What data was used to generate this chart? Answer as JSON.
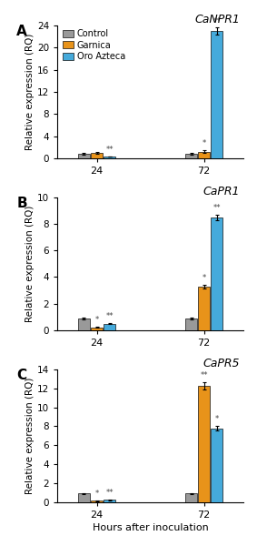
{
  "panels": [
    {
      "label": "A",
      "title": "CaNPR1",
      "ylim": [
        0,
        24
      ],
      "yticks": [
        0,
        4,
        8,
        12,
        16,
        20,
        24
      ],
      "bar_values": [
        [
          0.8,
          0.9,
          0.3
        ],
        [
          0.8,
          1.2,
          23.0
        ]
      ],
      "bar_errors": [
        [
          0.1,
          0.15,
          0.05
        ],
        [
          0.1,
          0.2,
          0.6
        ]
      ],
      "significance": [
        [
          null,
          null,
          "**"
        ],
        [
          null,
          "*",
          "**"
        ]
      ]
    },
    {
      "label": "B",
      "title": "CaPR1",
      "ylim": [
        0,
        10
      ],
      "yticks": [
        0,
        2,
        4,
        6,
        8,
        10
      ],
      "bar_values": [
        [
          0.9,
          0.2,
          0.5
        ],
        [
          0.9,
          3.3,
          8.5
        ]
      ],
      "bar_errors": [
        [
          0.08,
          0.04,
          0.06
        ],
        [
          0.08,
          0.15,
          0.2
        ]
      ],
      "significance": [
        [
          null,
          "*",
          "**"
        ],
        [
          null,
          "*",
          "**"
        ]
      ]
    },
    {
      "label": "C",
      "title": "CaPR5",
      "ylim": [
        0,
        14
      ],
      "yticks": [
        0,
        2,
        4,
        6,
        8,
        10,
        12,
        14
      ],
      "bar_values": [
        [
          0.9,
          0.15,
          0.25
        ],
        [
          0.9,
          12.3,
          7.8
        ]
      ],
      "bar_errors": [
        [
          0.08,
          0.03,
          0.04
        ],
        [
          0.08,
          0.4,
          0.25
        ]
      ],
      "significance": [
        [
          null,
          "*",
          "**"
        ],
        [
          null,
          "**",
          "*"
        ]
      ]
    }
  ],
  "colors": [
    "#999999",
    "#E8931A",
    "#45AADB"
  ],
  "legend_labels": [
    "Control",
    "Garnica",
    "Oro Azteca"
  ],
  "time_points": [
    "24",
    "72"
  ],
  "xlabel": "Hours after inoculation",
  "ylabel": "Relative expression (RQ)",
  "bar_width": 0.18,
  "edge_color": "#111111"
}
